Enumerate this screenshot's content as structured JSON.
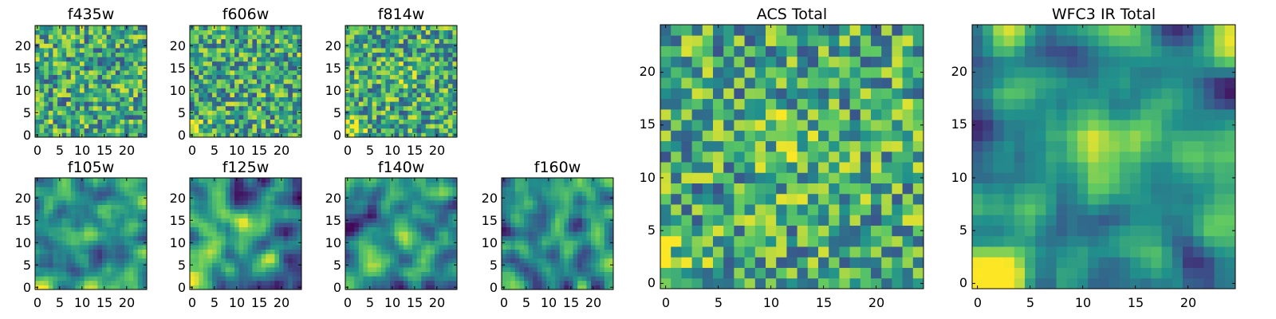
{
  "chart_data": [
    {
      "type": "heatmap",
      "title": "f435w",
      "grid": false,
      "xlim": [
        -0.5,
        24.5
      ],
      "ylim": [
        -0.5,
        24.5
      ],
      "xticks": [
        "0",
        "5",
        "10",
        "15",
        "20"
      ],
      "yticks": [
        "0",
        "5",
        "10",
        "15",
        "20"
      ],
      "cmap": "viridis",
      "pattern": {
        "style": "noisy",
        "bright_corner": 0.2,
        "center_boost": 0.0,
        "seed": 11
      }
    },
    {
      "type": "heatmap",
      "title": "f606w",
      "grid": false,
      "xlim": [
        -0.5,
        24.5
      ],
      "ylim": [
        -0.5,
        24.5
      ],
      "xticks": [
        "0",
        "5",
        "10",
        "15",
        "20"
      ],
      "yticks": [
        "0",
        "5",
        "10",
        "15",
        "20"
      ],
      "cmap": "viridis",
      "pattern": {
        "style": "noisy",
        "bright_corner": 0.35,
        "center_boost": 0.05,
        "seed": 23
      }
    },
    {
      "type": "heatmap",
      "title": "f814w",
      "grid": false,
      "xlim": [
        -0.5,
        24.5
      ],
      "ylim": [
        -0.5,
        24.5
      ],
      "xticks": [
        "0",
        "5",
        "10",
        "15",
        "20"
      ],
      "yticks": [
        "0",
        "5",
        "10",
        "15",
        "20"
      ],
      "cmap": "viridis",
      "pattern": {
        "style": "noisy",
        "bright_corner": 0.4,
        "center_boost": 0.12,
        "seed": 37
      }
    },
    {
      "type": "heatmap",
      "title": "f105w",
      "grid": false,
      "xlim": [
        -0.5,
        24.5
      ],
      "ylim": [
        -0.5,
        24.5
      ],
      "xticks": [
        "0",
        "5",
        "10",
        "15",
        "20"
      ],
      "yticks": [
        "0",
        "5",
        "10",
        "15",
        "20"
      ],
      "cmap": "viridis",
      "pattern": {
        "style": "smooth",
        "bright_corner": 0.55,
        "center_boost": 0.25,
        "seed": 41
      }
    },
    {
      "type": "heatmap",
      "title": "f125w",
      "grid": false,
      "xlim": [
        -0.5,
        24.5
      ],
      "ylim": [
        -0.5,
        24.5
      ],
      "xticks": [
        "0",
        "5",
        "10",
        "15",
        "20"
      ],
      "yticks": [
        "0",
        "5",
        "10",
        "15",
        "20"
      ],
      "cmap": "viridis",
      "pattern": {
        "style": "smooth",
        "bright_corner": 0.55,
        "center_boost": 0.25,
        "seed": 53
      }
    },
    {
      "type": "heatmap",
      "title": "f140w",
      "grid": false,
      "xlim": [
        -0.5,
        24.5
      ],
      "ylim": [
        -0.5,
        24.5
      ],
      "xticks": [
        "0",
        "5",
        "10",
        "15",
        "20"
      ],
      "yticks": [
        "0",
        "5",
        "10",
        "15",
        "20"
      ],
      "cmap": "viridis",
      "pattern": {
        "style": "smooth",
        "bright_corner": 0.5,
        "center_boost": 0.2,
        "seed": 67
      }
    },
    {
      "type": "heatmap",
      "title": "f160w",
      "grid": false,
      "xlim": [
        -0.5,
        24.5
      ],
      "ylim": [
        -0.5,
        24.5
      ],
      "xticks": [
        "0",
        "5",
        "10",
        "15",
        "20"
      ],
      "yticks": [
        "0",
        "5",
        "10",
        "15",
        "20"
      ],
      "cmap": "viridis",
      "pattern": {
        "style": "smooth",
        "bright_corner": 0.55,
        "center_boost": 0.2,
        "seed": 79
      }
    },
    {
      "type": "heatmap",
      "title": "ACS Total",
      "grid": false,
      "xlim": [
        -0.5,
        24.5
      ],
      "ylim": [
        -0.5,
        24.5
      ],
      "xticks": [
        "0",
        "5",
        "10",
        "15",
        "20"
      ],
      "yticks": [
        "0",
        "5",
        "10",
        "15",
        "20"
      ],
      "cmap": "viridis",
      "pattern": {
        "style": "noisy",
        "bright_corner": 0.35,
        "center_boost": 0.15,
        "seed": 97
      }
    },
    {
      "type": "heatmap",
      "title": "WFC3 IR Total",
      "grid": false,
      "xlim": [
        -0.5,
        24.5
      ],
      "ylim": [
        -0.5,
        24.5
      ],
      "xticks": [
        "0",
        "5",
        "10",
        "15",
        "20"
      ],
      "yticks": [
        "0",
        "5",
        "10",
        "15",
        "20"
      ],
      "cmap": "viridis",
      "pattern": {
        "style": "smooth",
        "bright_corner": 0.65,
        "center_boost": 0.3,
        "seed": 113
      }
    }
  ]
}
